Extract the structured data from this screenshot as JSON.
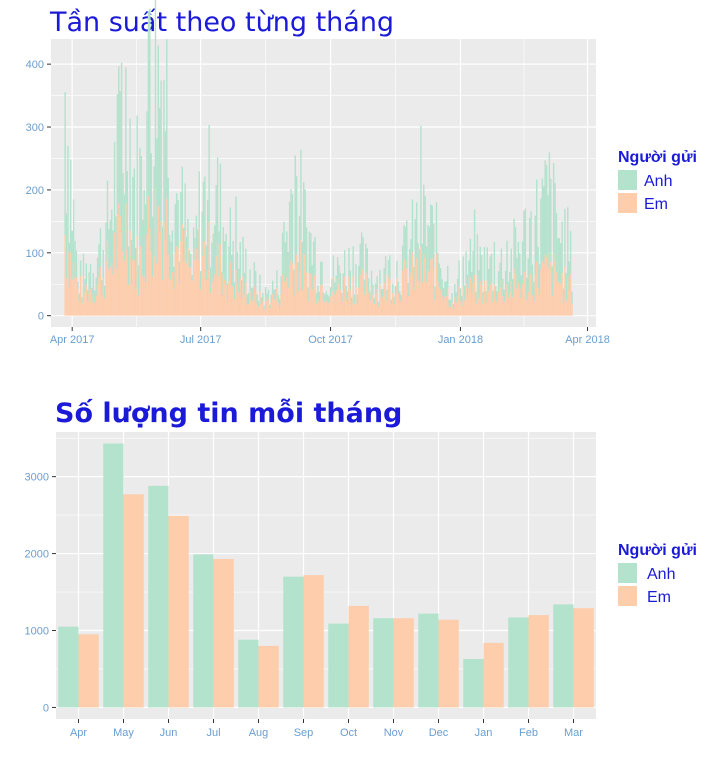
{
  "colors": {
    "anh": "#b3e2cd",
    "em": "#fdcdac",
    "panel": "#ebebeb",
    "grid": "#ffffff",
    "title": "#1a1ad8",
    "tick": "#6a9ed0"
  },
  "chart_data": [
    {
      "type": "bar",
      "title": "Tần suất theo từng tháng",
      "xlabel": "",
      "ylabel": "",
      "x_ticks": [
        "Apr 2017",
        "Jul 2017",
        "Oct 2017",
        "Jan 2018",
        "Apr 2018"
      ],
      "x_tick_dates": [
        "2017-04-01",
        "2017-07-01",
        "2017-10-01",
        "2018-01-01",
        "2018-04-01"
      ],
      "x_range": [
        "2017-03-17",
        "2018-04-07"
      ],
      "y_ticks": [
        0,
        100,
        200,
        300,
        400
      ],
      "ylim": [
        -18,
        440
      ],
      "stacked": true,
      "grid": true,
      "legend": {
        "title": "Người gửi",
        "entries": [
          "Anh",
          "Em"
        ],
        "position": "right"
      },
      "series": [
        {
          "name": "Anh",
          "date_range": [
            "2017-03-27",
            "2018-03-21"
          ],
          "anchors": [
            [
              "2017-03-27",
              230
            ],
            [
              "2017-04-05",
              10
            ],
            [
              "2017-04-15",
              40
            ],
            [
              "2017-04-25",
              50
            ],
            [
              "2017-05-05",
              150
            ],
            [
              "2017-05-10",
              180
            ],
            [
              "2017-05-15",
              130
            ],
            [
              "2017-05-20",
              120
            ],
            [
              "2017-05-26",
              220
            ],
            [
              "2017-06-01",
              220
            ],
            [
              "2017-06-05",
              240
            ],
            [
              "2017-06-12",
              90
            ],
            [
              "2017-06-20",
              50
            ],
            [
              "2017-06-25",
              10
            ],
            [
              "2017-07-01",
              70
            ],
            [
              "2017-07-10",
              110
            ],
            [
              "2017-07-20",
              60
            ],
            [
              "2017-08-01",
              40
            ],
            [
              "2017-08-15",
              10
            ],
            [
              "2017-08-25",
              20
            ],
            [
              "2017-09-05",
              120
            ],
            [
              "2017-09-15",
              60
            ],
            [
              "2017-10-01",
              20
            ],
            [
              "2017-10-10",
              30
            ],
            [
              "2017-10-20",
              40
            ],
            [
              "2017-11-01",
              20
            ],
            [
              "2017-11-15",
              20
            ],
            [
              "2017-11-25",
              40
            ],
            [
              "2017-12-05",
              80
            ],
            [
              "2017-12-15",
              50
            ],
            [
              "2017-12-28",
              15
            ],
            [
              "2018-01-03",
              40
            ],
            [
              "2018-01-15",
              40
            ],
            [
              "2018-01-25",
              35
            ],
            [
              "2018-02-05",
              40
            ],
            [
              "2018-02-15",
              70
            ],
            [
              "2018-02-25",
              90
            ],
            [
              "2018-03-05",
              110
            ],
            [
              "2018-03-12",
              70
            ],
            [
              "2018-03-21",
              40
            ]
          ]
        },
        {
          "name": "Em",
          "date_range": [
            "2017-03-27",
            "2018-03-21"
          ],
          "anchors": [
            [
              "2017-03-27",
              130
            ],
            [
              "2017-04-05",
              40
            ],
            [
              "2017-04-15",
              40
            ],
            [
              "2017-04-25",
              70
            ],
            [
              "2017-05-05",
              120
            ],
            [
              "2017-05-10",
              150
            ],
            [
              "2017-05-15",
              80
            ],
            [
              "2017-05-20",
              90
            ],
            [
              "2017-05-26",
              140
            ],
            [
              "2017-06-01",
              150
            ],
            [
              "2017-06-05",
              160
            ],
            [
              "2017-06-12",
              110
            ],
            [
              "2017-06-20",
              90
            ],
            [
              "2017-06-25",
              60
            ],
            [
              "2017-07-01",
              100
            ],
            [
              "2017-07-10",
              90
            ],
            [
              "2017-07-20",
              60
            ],
            [
              "2017-08-01",
              40
            ],
            [
              "2017-08-15",
              20
            ],
            [
              "2017-08-25",
              30
            ],
            [
              "2017-09-05",
              90
            ],
            [
              "2017-09-15",
              60
            ],
            [
              "2017-10-01",
              40
            ],
            [
              "2017-10-10",
              45
            ],
            [
              "2017-10-20",
              50
            ],
            [
              "2017-11-01",
              40
            ],
            [
              "2017-11-15",
              50
            ],
            [
              "2017-11-25",
              60
            ],
            [
              "2017-12-05",
              70
            ],
            [
              "2017-12-15",
              60
            ],
            [
              "2017-12-28",
              20
            ],
            [
              "2018-01-03",
              40
            ],
            [
              "2018-01-15",
              40
            ],
            [
              "2018-01-25",
              40
            ],
            [
              "2018-02-05",
              45
            ],
            [
              "2018-02-15",
              50
            ],
            [
              "2018-02-25",
              60
            ],
            [
              "2018-03-05",
              70
            ],
            [
              "2018-03-12",
              55
            ],
            [
              "2018-03-21",
              40
            ]
          ]
        }
      ]
    },
    {
      "type": "bar",
      "title": "Số lượng tin mỗi tháng",
      "xlabel": "",
      "ylabel": "",
      "categories": [
        "Apr",
        "May",
        "Jun",
        "Jul",
        "Aug",
        "Sep",
        "Oct",
        "Nov",
        "Dec",
        "Jan",
        "Feb",
        "Mar"
      ],
      "y_ticks": [
        0,
        1000,
        2000,
        3000
      ],
      "ylim": [
        -150,
        3580
      ],
      "grid": true,
      "legend": {
        "title": "Người gửi",
        "entries": [
          "Anh",
          "Em"
        ],
        "position": "right"
      },
      "series": [
        {
          "name": "Anh",
          "values": [
            1050,
            3430,
            2880,
            1990,
            880,
            1700,
            1090,
            1160,
            1220,
            630,
            1170,
            1340
          ]
        },
        {
          "name": "Em",
          "values": [
            950,
            2770,
            2490,
            1930,
            800,
            1720,
            1320,
            1160,
            1140,
            840,
            1200,
            1290
          ]
        }
      ]
    }
  ]
}
